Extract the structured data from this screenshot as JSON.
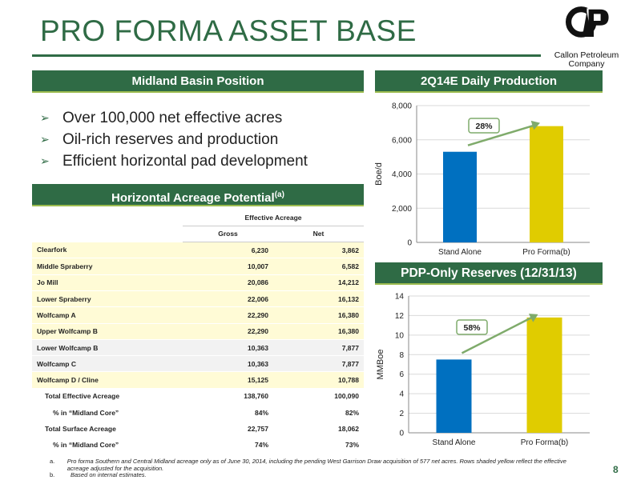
{
  "title": "PRO FORMA ASSET BASE",
  "logo": {
    "line1": "Callon Petroleum",
    "line2": "Company"
  },
  "midland": {
    "header": "Midland Basin Position",
    "bullets": [
      "Over 100,000 net effective acres",
      "Oil-rich reserves and production",
      "Efficient horizontal pad development"
    ]
  },
  "acreage": {
    "header": "Horizontal Acreage Potential",
    "header_sup": "(a)",
    "group_label": "Effective Acreage",
    "columns": [
      "Gross",
      "Net"
    ],
    "rows": [
      {
        "label": "Clearfork",
        "gross": "6,230",
        "net": "3,862",
        "shaded": true
      },
      {
        "label": "Middle Spraberry",
        "gross": "10,007",
        "net": "6,582",
        "shaded": true
      },
      {
        "label": "Jo Mill",
        "gross": "20,086",
        "net": "14,212",
        "shaded": true
      },
      {
        "label": "Lower Spraberry",
        "gross": "22,006",
        "net": "16,132",
        "shaded": true
      },
      {
        "label": "Wolfcamp A",
        "gross": "22,290",
        "net": "16,380",
        "shaded": true
      },
      {
        "label": "Upper Wolfcamp B",
        "gross": "22,290",
        "net": "16,380",
        "shaded": true
      },
      {
        "label": "Lower Wolfcamp B",
        "gross": "10,363",
        "net": "7,877",
        "shaded": false
      },
      {
        "label": "Wolfcamp C",
        "gross": "10,363",
        "net": "7,877",
        "shaded": false
      },
      {
        "label": "Wolfcamp D / Cline",
        "gross": "15,125",
        "net": "10,788",
        "shaded": true
      }
    ],
    "totals": [
      {
        "label": "Total Effective Acreage",
        "gross": "138,760",
        "net": "100,090",
        "indent": 1
      },
      {
        "label": "% in “Midland Core”",
        "gross": "84%",
        "net": "82%",
        "indent": 2
      },
      {
        "label": "Total Surface Acreage",
        "gross": "22,757",
        "net": "18,062",
        "indent": 1
      },
      {
        "label": "% in “Midland Core”",
        "gross": "74%",
        "net": "73%",
        "indent": 2
      }
    ]
  },
  "chart_data": [
    {
      "type": "bar",
      "title": "2Q14E Daily Production",
      "categories": [
        "Stand Alone",
        "Pro Forma(b)"
      ],
      "values": [
        5300,
        6800
      ],
      "ylabel": "Boe/d",
      "ylim": [
        0,
        8000
      ],
      "yticks": [
        "0",
        "2,000",
        "4,000",
        "6,000",
        "8,000"
      ],
      "ytick_values": [
        0,
        2000,
        4000,
        6000,
        8000
      ],
      "annotation": "28%",
      "colors": [
        "#0070c0",
        "#e0cc00"
      ],
      "grid": true
    },
    {
      "type": "bar",
      "title": "PDP-Only Reserves (12/31/13)",
      "categories": [
        "Stand Alone",
        "Pro Forma(b)"
      ],
      "values": [
        7.5,
        11.8
      ],
      "ylabel": "MMBoe",
      "ylim": [
        0,
        14
      ],
      "yticks": [
        "0",
        "2",
        "4",
        "6",
        "8",
        "10",
        "12",
        "14"
      ],
      "ytick_values": [
        0,
        2,
        4,
        6,
        8,
        10,
        12,
        14
      ],
      "annotation": "58%",
      "colors": [
        "#0070c0",
        "#e0cc00"
      ],
      "grid": true
    }
  ],
  "footnotes": [
    {
      "mark": "a.",
      "text": "Pro forma Southern and Central Midland acreage only as of June 30, 2014, including the pending West Garrison Draw acquisition of 577 net acres. Rows shaded yellow reflect the effective acreage adjusted for the acquisition."
    },
    {
      "mark": "b.",
      "text": "Based on internal estimates."
    }
  ],
  "page_number": "8",
  "colors": {
    "brand_green": "#2f6b45",
    "accent_green": "#9cbc4f",
    "bar_blue": "#0070c0",
    "bar_yellow": "#e0cc00",
    "arrow_green": "#7fab6b"
  }
}
